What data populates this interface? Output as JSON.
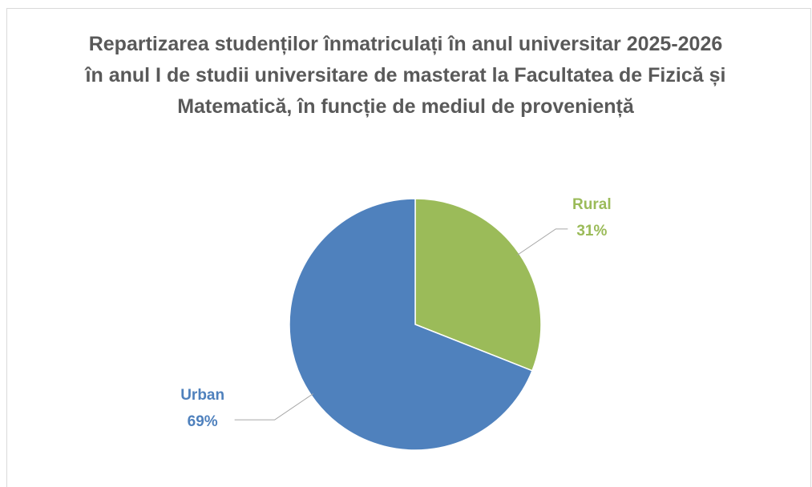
{
  "chart_data": {
    "type": "pie",
    "title": "Repartizarea studenților înmatriculați în anul universitar 2025-2026 în anul I de studii universitare de masterat la Facultatea de Fizică și Matematică, în funcție de mediul de proveniență",
    "categories": [
      "Rural",
      "Urban"
    ],
    "values": [
      31,
      69
    ],
    "value_labels": [
      "31%",
      "69%"
    ],
    "colors": [
      "#9bbb59",
      "#4f81bd"
    ]
  }
}
